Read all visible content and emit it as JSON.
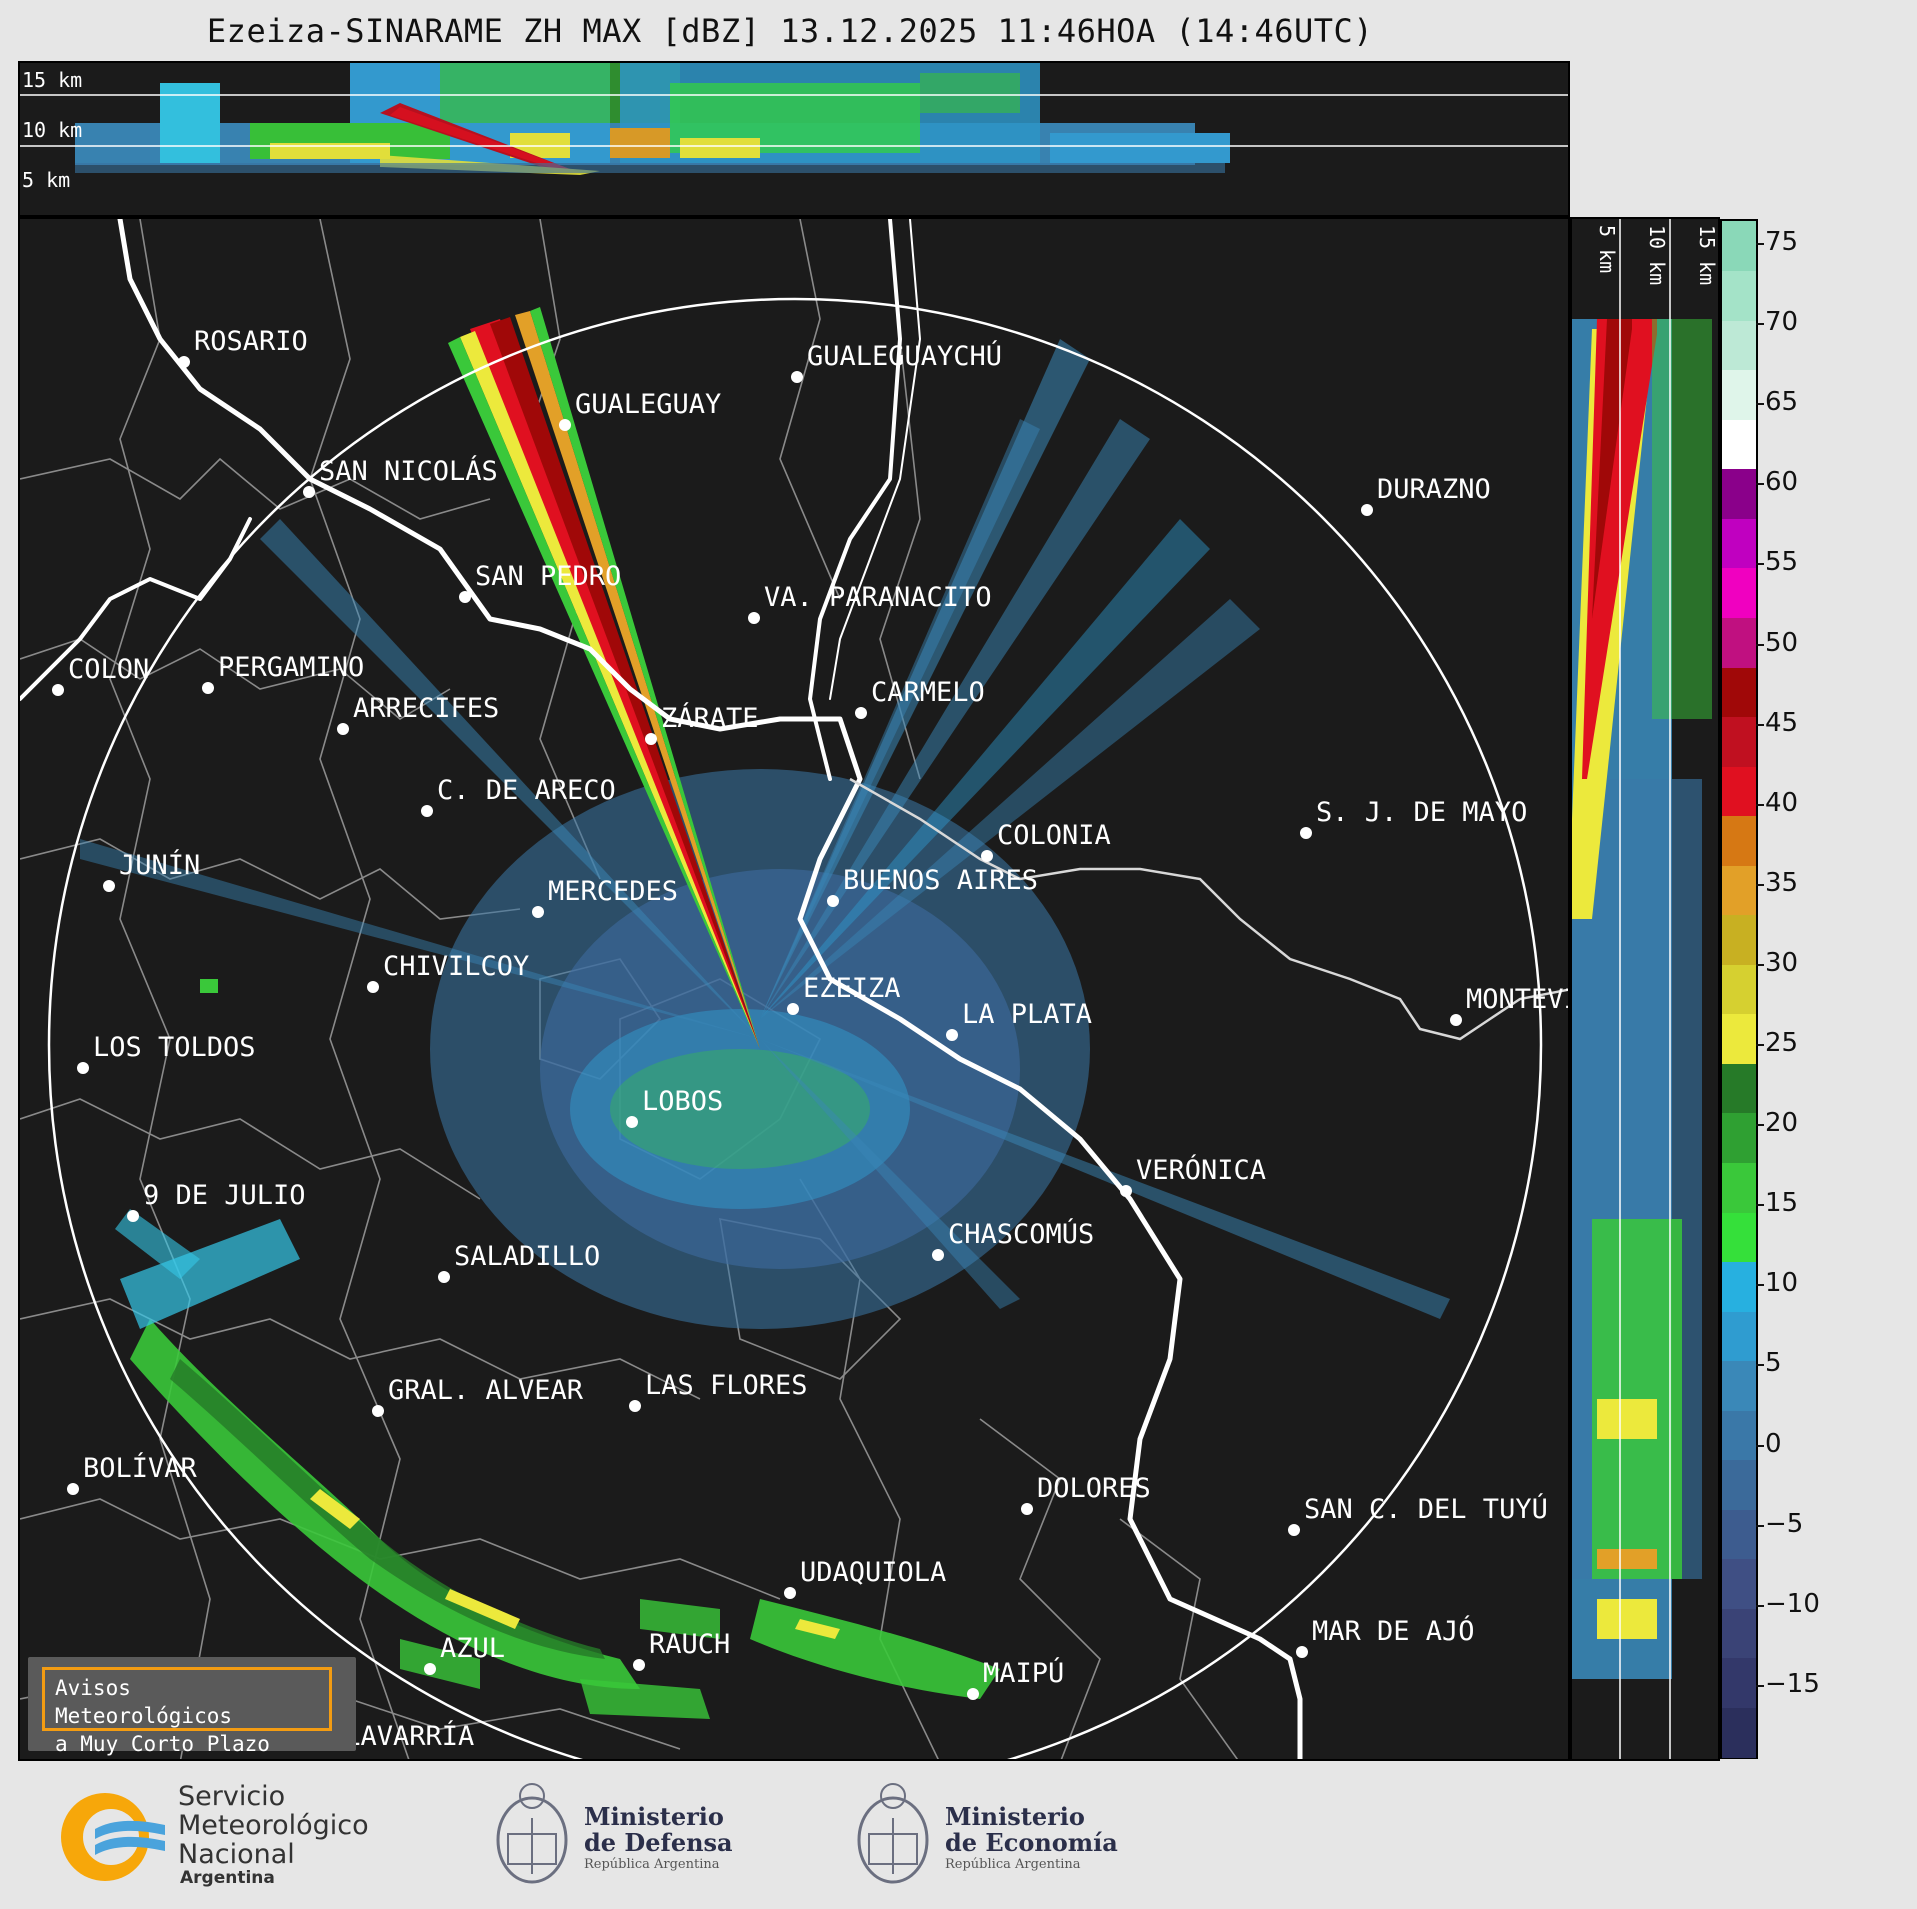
{
  "title": "Ezeiza-SINARAME ZH MAX [dBZ] 13.12.2025 11:46HOA (14:46UTC)",
  "height_labels_top": [
    "15 km",
    "10 km",
    "5 km"
  ],
  "height_labels_side": [
    "5 km",
    "10 km",
    "15 km"
  ],
  "colorbar": {
    "ticks": [
      "75",
      "70",
      "65",
      "60",
      "55",
      "50",
      "45",
      "40",
      "35",
      "30",
      "25",
      "20",
      "15",
      "10",
      "5",
      "0",
      "−5",
      "−10",
      "−15"
    ],
    "bands": [
      "#2b2f5c",
      "#33386a",
      "#3a4376",
      "#3f4f84",
      "#3d5c8f",
      "#3b6a9a",
      "#3a78a8",
      "#3a88b8",
      "#2f9cd0",
      "#27b0e0",
      "#35e03a",
      "#3ac83a",
      "#2fa032",
      "#267a28",
      "#ece93c",
      "#d6d030",
      "#c8b022",
      "#e2a028",
      "#d67814",
      "#e01020",
      "#c01020",
      "#a00808",
      "#c01080",
      "#f000c0",
      "#c000c0",
      "#8a008a",
      "#ffffff",
      "#dff5ea",
      "#bde9d6",
      "#a4e3c8",
      "#8ad8b8"
    ]
  },
  "cities": [
    {
      "name": "ROSARIO"
    },
    {
      "name": "GUALEGUAYCHÚ"
    },
    {
      "name": "GUALEGUAY"
    },
    {
      "name": "SAN NICOLÁS"
    },
    {
      "name": "DURAZNO"
    },
    {
      "name": "SAN PEDRO"
    },
    {
      "name": "VA. PARANACITO"
    },
    {
      "name": "COLON"
    },
    {
      "name": "PERGAMINO"
    },
    {
      "name": "CARMELO"
    },
    {
      "name": "ARRECIFES"
    },
    {
      "name": "ZÁRATE"
    },
    {
      "name": "S. J. DE MAYO"
    },
    {
      "name": "C. DE ARECO"
    },
    {
      "name": "COLONIA"
    },
    {
      "name": "JUNÍN"
    },
    {
      "name": "BUENOS AIRES"
    },
    {
      "name": "MERCEDES"
    },
    {
      "name": "EZEIZA"
    },
    {
      "name": "MONTEVIDEO"
    },
    {
      "name": "CHIVILCOY"
    },
    {
      "name": "LA PLATA"
    },
    {
      "name": "LOS TOLDOS"
    },
    {
      "name": "LOBOS"
    },
    {
      "name": "VERÓNICA"
    },
    {
      "name": "9 DE JULIO"
    },
    {
      "name": "SALADILLO"
    },
    {
      "name": "CHASCOMÚS"
    },
    {
      "name": "GRAL. ALVEAR"
    },
    {
      "name": "LAS FLORES"
    },
    {
      "name": "BOLÍVAR"
    },
    {
      "name": "DOLORES"
    },
    {
      "name": "SAN C. DEL TUYÚ"
    },
    {
      "name": "UDAQUIOLA"
    },
    {
      "name": "MAR DE AJÓ"
    },
    {
      "name": "AZUL"
    },
    {
      "name": "RAUCH"
    },
    {
      "name": "OLAVARRÍA"
    },
    {
      "name": "MAIPÚ"
    }
  ],
  "alert": {
    "line1": "Avisos Meteorológicos",
    "line2": "a Muy Corto Plazo"
  },
  "logos": {
    "smn": {
      "line1": "Servicio",
      "line2": "Meteorológico",
      "line3": "Nacional",
      "line4": "Argentina"
    },
    "defensa": {
      "line1": "Ministerio",
      "line2": "de Defensa",
      "line3": "República Argentina"
    },
    "economia": {
      "line1": "Ministerio",
      "line2": "de Economía",
      "line3": "República Argentina"
    }
  }
}
